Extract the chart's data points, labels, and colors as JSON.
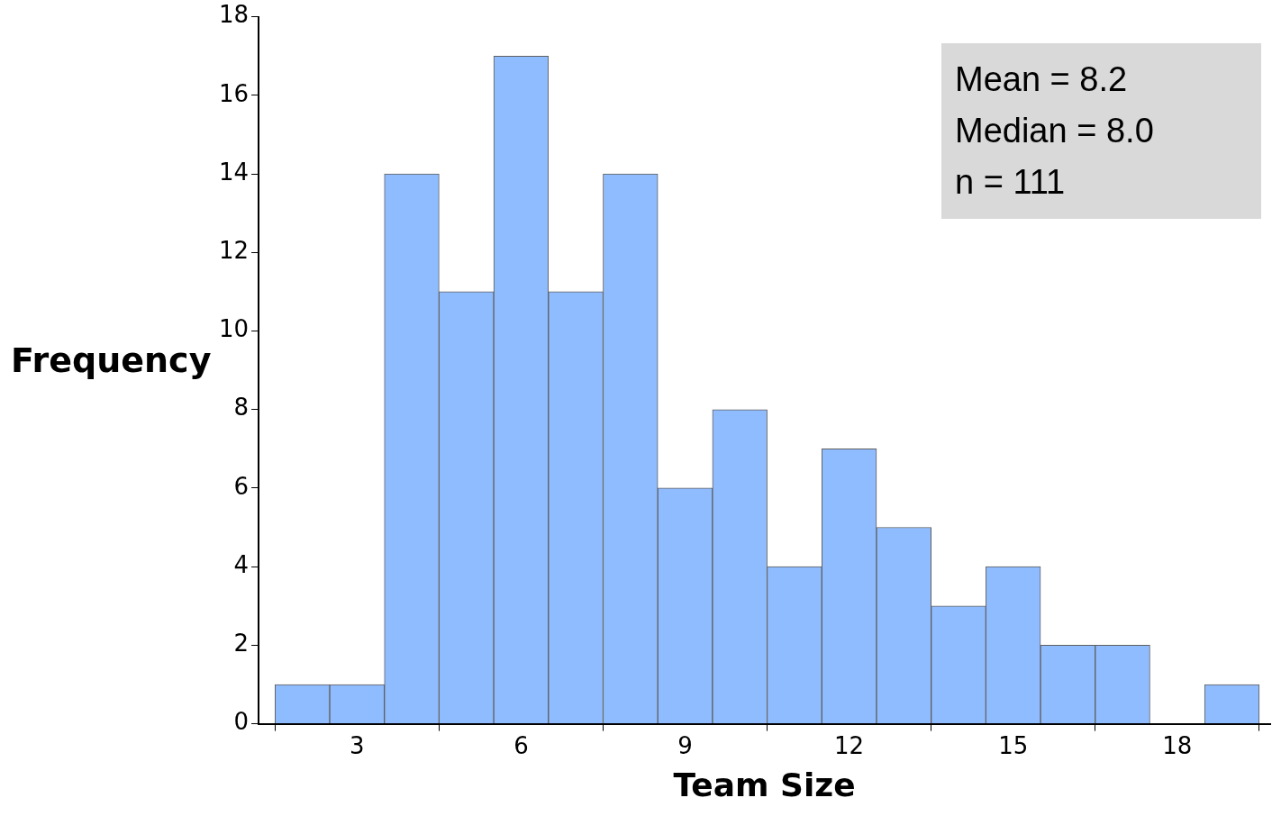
{
  "chart_data": {
    "type": "histogram",
    "xlabel": "Team Size",
    "ylabel": "Frequency",
    "bins": [
      1.5,
      2.5,
      3.5,
      4.5,
      5.5,
      6.5,
      7.5,
      8.5,
      9.5,
      10.5,
      11.5,
      12.5,
      13.5,
      14.5,
      15.5,
      16.5,
      17.5,
      18.5,
      19.5
    ],
    "values": [
      1,
      1,
      14,
      11,
      17,
      11,
      14,
      6,
      8,
      4,
      7,
      5,
      3,
      4,
      2,
      2,
      0,
      1
    ],
    "color": "#8fbcff",
    "xlim": [
      1.2,
      19.7
    ],
    "xticks": [
      3,
      6,
      9,
      12,
      15,
      18
    ],
    "ylim": [
      0,
      18
    ],
    "yticks": [
      0,
      2,
      4,
      6,
      8,
      10,
      12,
      14,
      16,
      18
    ],
    "annotations": [
      "Mean = 8.2",
      "Median = 8.0",
      "n = 111"
    ]
  }
}
